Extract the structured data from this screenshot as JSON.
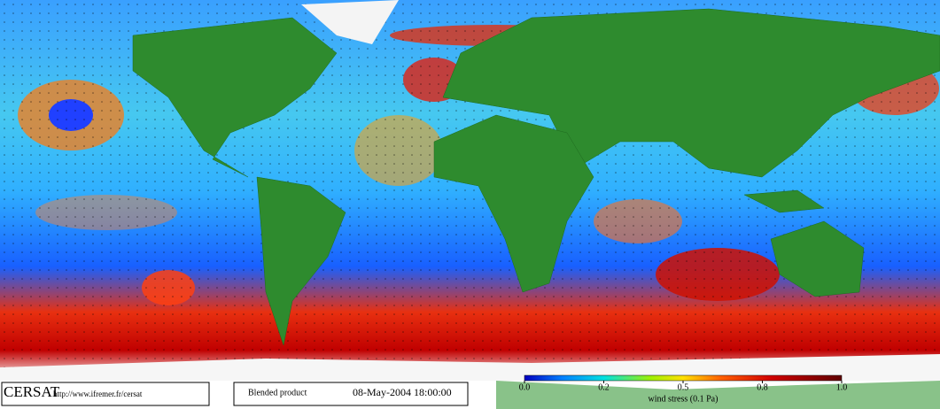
{
  "footer": {
    "logo": "CERSAT",
    "url": "http://www.ifremer.fr/cersat",
    "product": "Blended product",
    "timestamp": "08-May-2004 18:00:00"
  },
  "colorbar": {
    "label": "wind stress (0.1 Pa)",
    "ticks": [
      "0.0",
      "0.2",
      "0.5",
      "0.8",
      "1.0"
    ]
  }
}
